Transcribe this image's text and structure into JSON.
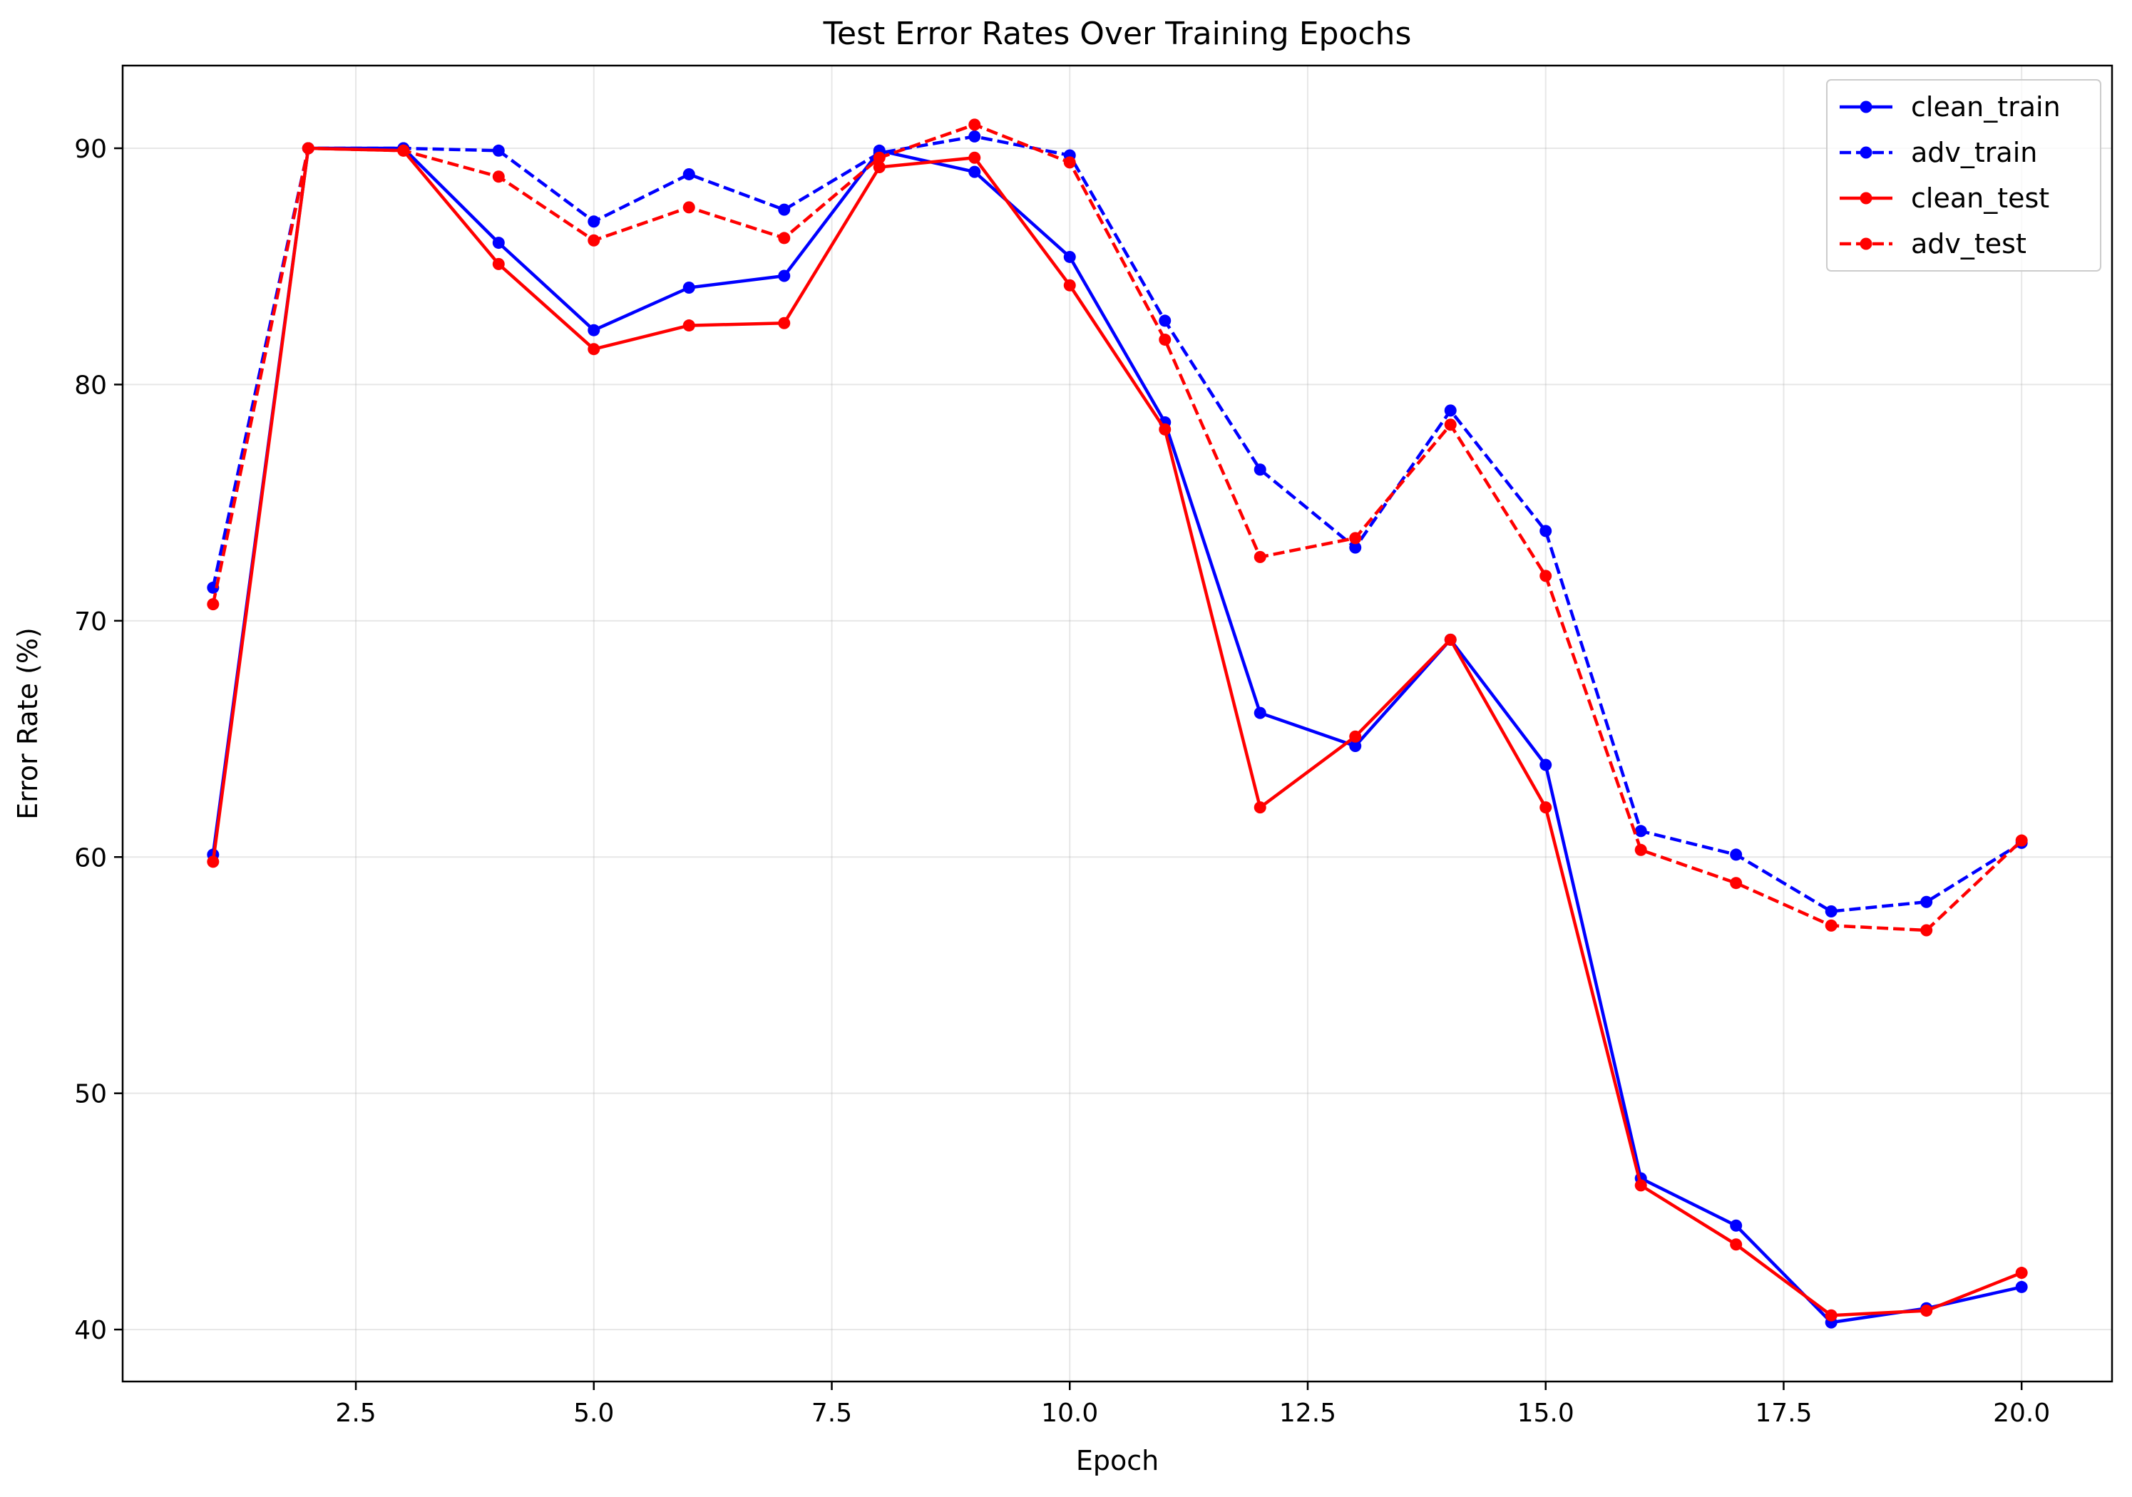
{
  "chart_data": {
    "type": "line",
    "title": "Test Error Rates Over Training Epochs",
    "xlabel": "Epoch",
    "ylabel": "Error Rate (%)",
    "xlim": [
      0.05,
      20.95
    ],
    "ylim": [
      37.8,
      93.5
    ],
    "x_ticks": [
      2.5,
      5.0,
      7.5,
      10.0,
      12.5,
      15.0,
      17.5,
      20.0
    ],
    "x_tick_labels": [
      "2.5",
      "5.0",
      "7.5",
      "10.0",
      "12.5",
      "15.0",
      "17.5",
      "20.0"
    ],
    "y_ticks": [
      40,
      50,
      60,
      70,
      80,
      90
    ],
    "y_tick_labels": [
      "40",
      "50",
      "60",
      "70",
      "80",
      "90"
    ],
    "grid": true,
    "legend_position": "top-right",
    "x": [
      1,
      2,
      3,
      4,
      5,
      6,
      7,
      8,
      9,
      10,
      11,
      12,
      13,
      14,
      15,
      16,
      17,
      18,
      19,
      20
    ],
    "series": [
      {
        "name": "clean_train",
        "color": "#0000ff",
        "style": "solid",
        "marker": "circle",
        "values": [
          60.1,
          90.0,
          90.0,
          86.0,
          82.3,
          84.1,
          84.6,
          89.9,
          89.0,
          85.4,
          78.4,
          66.1,
          64.7,
          69.2,
          63.9,
          46.4,
          44.4,
          40.3,
          40.9,
          41.8
        ]
      },
      {
        "name": "adv_train",
        "color": "#0000ff",
        "style": "dashed",
        "marker": "circle",
        "values": [
          71.4,
          90.0,
          90.0,
          89.9,
          86.9,
          88.9,
          87.4,
          89.8,
          90.5,
          89.7,
          82.7,
          76.4,
          73.1,
          78.9,
          73.8,
          61.1,
          60.1,
          57.7,
          58.1,
          60.6
        ]
      },
      {
        "name": "clean_test",
        "color": "#ff0000",
        "style": "solid",
        "marker": "circle",
        "values": [
          59.8,
          90.0,
          89.9,
          85.1,
          81.5,
          82.5,
          82.6,
          89.2,
          89.6,
          84.2,
          78.1,
          62.1,
          65.1,
          69.2,
          62.1,
          46.1,
          43.6,
          40.6,
          40.8,
          42.4
        ]
      },
      {
        "name": "adv_test",
        "color": "#ff0000",
        "style": "dashed",
        "marker": "circle",
        "values": [
          70.7,
          90.0,
          89.9,
          88.8,
          86.1,
          87.5,
          86.2,
          89.6,
          91.0,
          89.4,
          81.9,
          72.7,
          73.5,
          78.3,
          71.9,
          60.3,
          58.9,
          57.1,
          56.9,
          60.7
        ]
      }
    ]
  }
}
